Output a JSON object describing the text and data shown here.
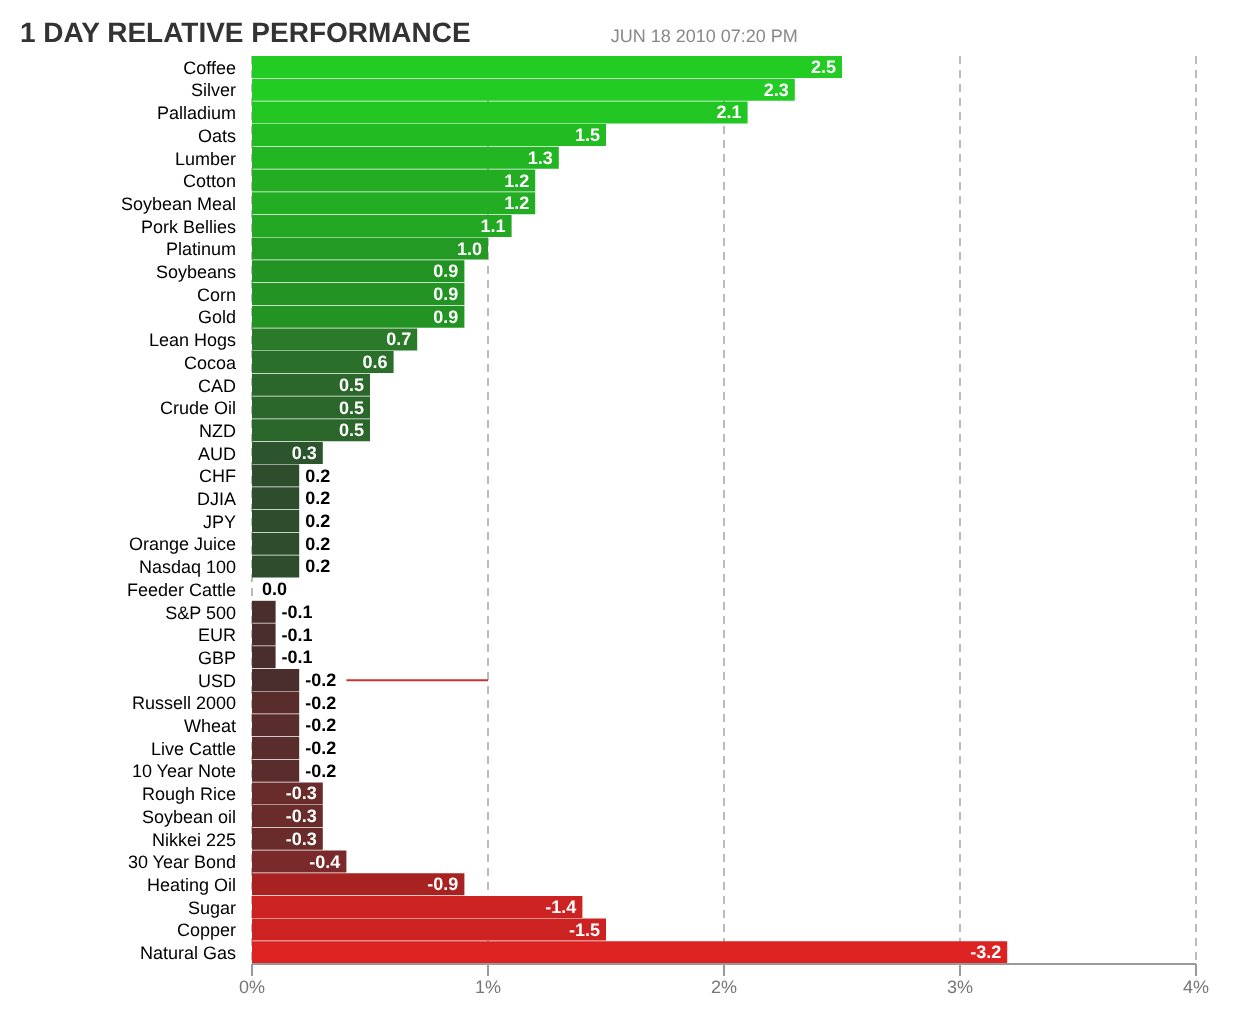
{
  "chart_data": {
    "type": "bar",
    "orientation": "horizontal",
    "title": "1 DAY RELATIVE PERFORMANCE",
    "subtitle": "JUN 18 2010 07:20 PM",
    "categories": [
      "Coffee",
      "Silver",
      "Palladium",
      "Oats",
      "Lumber",
      "Cotton",
      "Soybean Meal",
      "Pork Bellies",
      "Platinum",
      "Soybeans",
      "Corn",
      "Gold",
      "Lean Hogs",
      "Cocoa",
      "CAD",
      "Crude Oil",
      "NZD",
      "AUD",
      "CHF",
      "DJIA",
      "JPY",
      "Orange Juice",
      "Nasdaq 100",
      "Feeder Cattle",
      "S&P 500",
      "EUR",
      "GBP",
      "USD",
      "Russell 2000",
      "Wheat",
      "Live Cattle",
      "10 Year Note",
      "Rough Rice",
      "Soybean oil",
      "Nikkei 225",
      "30 Year Bond",
      "Heating Oil",
      "Sugar",
      "Copper",
      "Natural Gas"
    ],
    "values": [
      2.5,
      2.3,
      2.1,
      1.5,
      1.3,
      1.2,
      1.2,
      1.1,
      1.0,
      0.9,
      0.9,
      0.9,
      0.7,
      0.6,
      0.5,
      0.5,
      0.5,
      0.3,
      0.2,
      0.2,
      0.2,
      0.2,
      0.2,
      0.0,
      -0.1,
      -0.1,
      -0.1,
      -0.2,
      -0.2,
      -0.2,
      -0.2,
      -0.2,
      -0.3,
      -0.3,
      -0.3,
      -0.4,
      -0.9,
      -1.4,
      -1.5,
      -3.2
    ],
    "base": [
      null,
      null,
      null,
      null,
      null,
      null,
      null,
      null,
      null,
      null,
      null,
      null,
      null,
      null,
      null,
      null,
      null,
      null,
      null,
      null,
      null,
      null,
      null,
      null,
      0.1,
      0.1,
      0.1,
      0.2,
      0.2,
      0.2,
      0.2,
      0.2,
      0.3,
      0.3,
      0.3,
      0.4,
      0.9,
      1.4,
      1.5,
      3.2
    ],
    "value_labels": [
      "2.5",
      "2.3",
      "2.1",
      "1.5",
      "1.3",
      "1.2",
      "1.2",
      "1.1",
      "1.0",
      "0.9",
      "0.9",
      "0.9",
      "0.7",
      "0.6",
      "0.5",
      "0.5",
      "0.5",
      "0.3",
      "0.2",
      "0.2",
      "0.2",
      "0.2",
      "0.2",
      "0.0",
      "-0.1",
      "-0.1",
      "-0.1",
      "-0.2",
      "-0.2",
      "-0.2",
      "-0.2",
      "-0.2",
      "-0.3",
      "-0.3",
      "-0.3",
      "-0.4",
      "-0.9",
      "-1.4",
      "-1.5",
      "-3.2"
    ],
    "colors": [
      "#22cc22",
      "#22cc22",
      "#22c622",
      "#22bb22",
      "#22b522",
      "#22ad22",
      "#22ad22",
      "#22a822",
      "#239a23",
      "#239423",
      "#239423",
      "#239423",
      "#2a7a2a",
      "#2a702a",
      "#2b662b",
      "#2b662b",
      "#2b662b",
      "#2d552d",
      "#2d4d2d",
      "#2d4d2d",
      "#2d4d2d",
      "#2d4d2d",
      "#2d4d2d",
      "#333333",
      "#4a2d2d",
      "#4a2d2d",
      "#4a2d2d",
      "#4a2d2d",
      "#5a2d2d",
      "#5a2d2d",
      "#5a2d2d",
      "#5a2d2d",
      "#6a2b2b",
      "#6a2b2b",
      "#6a2b2b",
      "#7a2a2a",
      "#a82222",
      "#cc2222",
      "#cc2222",
      "#dd2222"
    ],
    "xlim": [
      0,
      4
    ],
    "xticks": [
      {
        "value": 0,
        "label": "0%"
      },
      {
        "value": 1,
        "label": "1%"
      },
      {
        "value": 2,
        "label": "2%"
      },
      {
        "value": 3,
        "label": "3%"
      },
      {
        "value": 4,
        "label": "4%"
      }
    ],
    "grid": "x",
    "ref_lines": [
      {
        "axis": "y",
        "value": "USD",
        "color": "#cc3333"
      }
    ]
  }
}
